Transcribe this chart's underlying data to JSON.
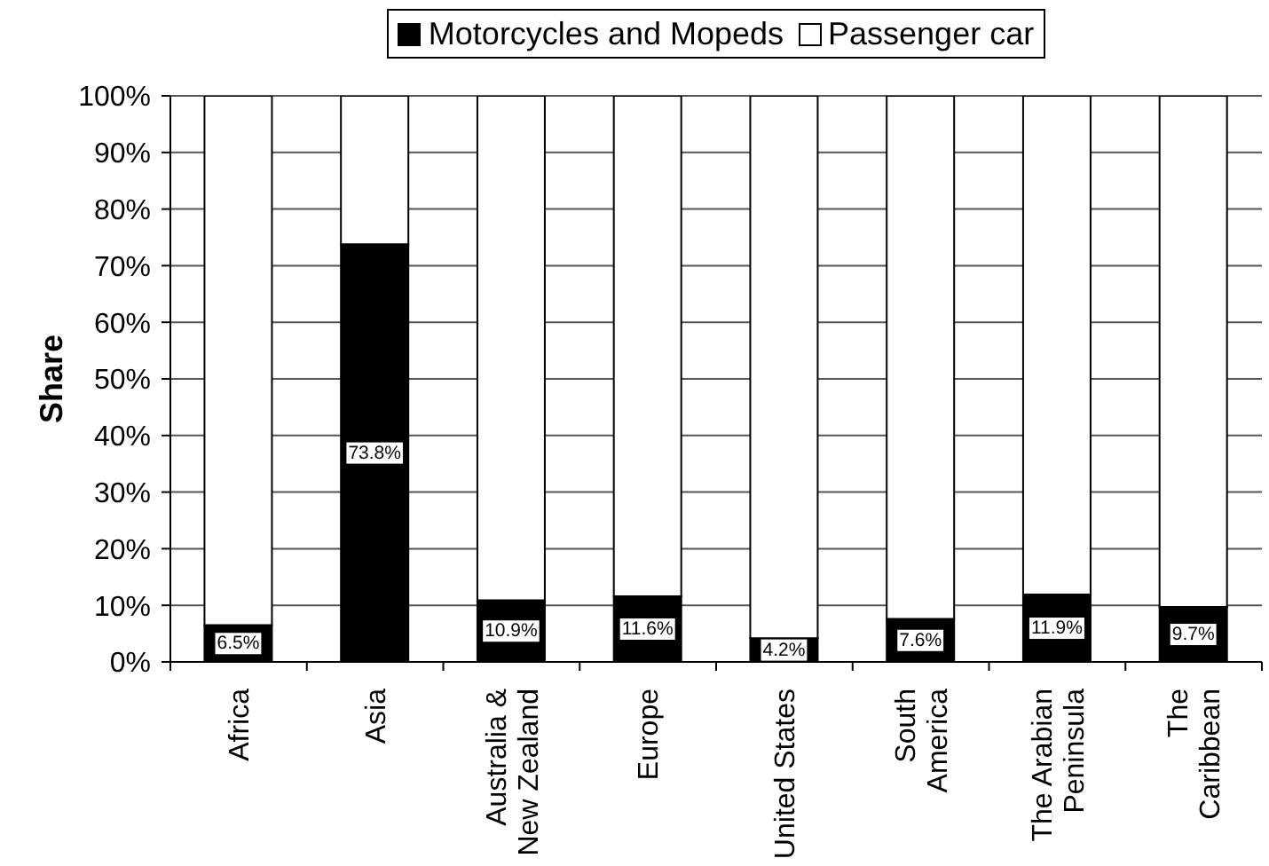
{
  "chart_data": {
    "type": "bar",
    "stacked": true,
    "ylabel": "Share",
    "categories": [
      "Africa",
      "Asia",
      "Australia & New Zealand",
      "Europe",
      "United States",
      "South America",
      "The Arabian Peninsula",
      "The Caribbean"
    ],
    "series": [
      {
        "name": "Motorcycles and Mopeds",
        "color": "#000000",
        "values": [
          6.5,
          73.8,
          10.9,
          11.6,
          4.2,
          7.6,
          11.9,
          9.7
        ],
        "value_labels": [
          "6.5%",
          "73.8%",
          "10.9%",
          "11.6%",
          "4.2%",
          "7.6%",
          "11.9%",
          "9.7%"
        ]
      },
      {
        "name": "Passenger car",
        "color": "#ffffff",
        "values": [
          93.5,
          26.2,
          89.1,
          88.4,
          95.8,
          92.4,
          88.1,
          90.3
        ]
      }
    ],
    "ylim": [
      0,
      100
    ],
    "yticks": [
      {
        "value": 0,
        "label": "0%"
      },
      {
        "value": 10,
        "label": "10%"
      },
      {
        "value": 20,
        "label": "20%"
      },
      {
        "value": 30,
        "label": "30%"
      },
      {
        "value": 40,
        "label": "40%"
      },
      {
        "value": 50,
        "label": "50%"
      },
      {
        "value": 60,
        "label": "60%"
      },
      {
        "value": 70,
        "label": "70%"
      },
      {
        "value": 80,
        "label": "80%"
      },
      {
        "value": 90,
        "label": "90%"
      },
      {
        "value": 100,
        "label": "100%"
      }
    ],
    "grid": "y",
    "legend": "top"
  }
}
